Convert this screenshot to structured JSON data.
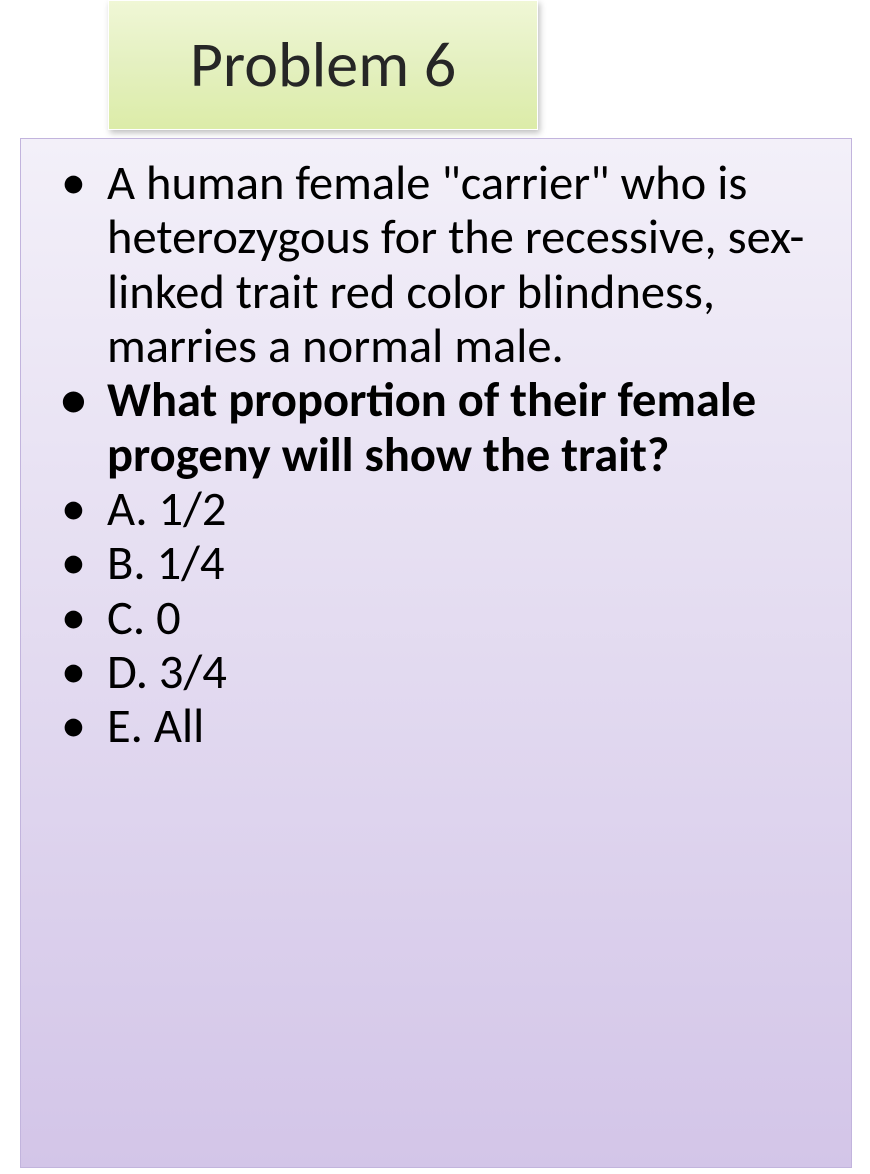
{
  "title": {
    "text": "Problem 6",
    "fontsize": 64,
    "color": "#262626",
    "background_gradient": [
      "#f0f7d6",
      "#dceca8"
    ],
    "border_color": "#ffffff",
    "shadow_color": "rgba(0,0,0,0.25)"
  },
  "content_box": {
    "background_gradient": [
      "#f3f0f9",
      "#d3c5e8"
    ],
    "border_color": "#c2b4dd"
  },
  "bullets": [
    {
      "text": "A human female \"carrier\" who is heterozygous for the recessive, sex-linked trait red color blindness, marries a normal male.",
      "bold": false
    },
    {
      "text": "What proportion of their female progeny will show the trait?",
      "bold": true
    },
    {
      "text": "A. 1/2",
      "bold": false
    },
    {
      "text": "B. 1/4",
      "bold": false
    },
    {
      "text": "C. 0",
      "bold": false
    },
    {
      "text": "D. 3/4",
      "bold": false
    },
    {
      "text": "E. All",
      "bold": false
    }
  ],
  "typography": {
    "body_fontsize": 48.5,
    "body_color": "#000000",
    "line_height": 1.12,
    "font_family": "Calibri"
  }
}
